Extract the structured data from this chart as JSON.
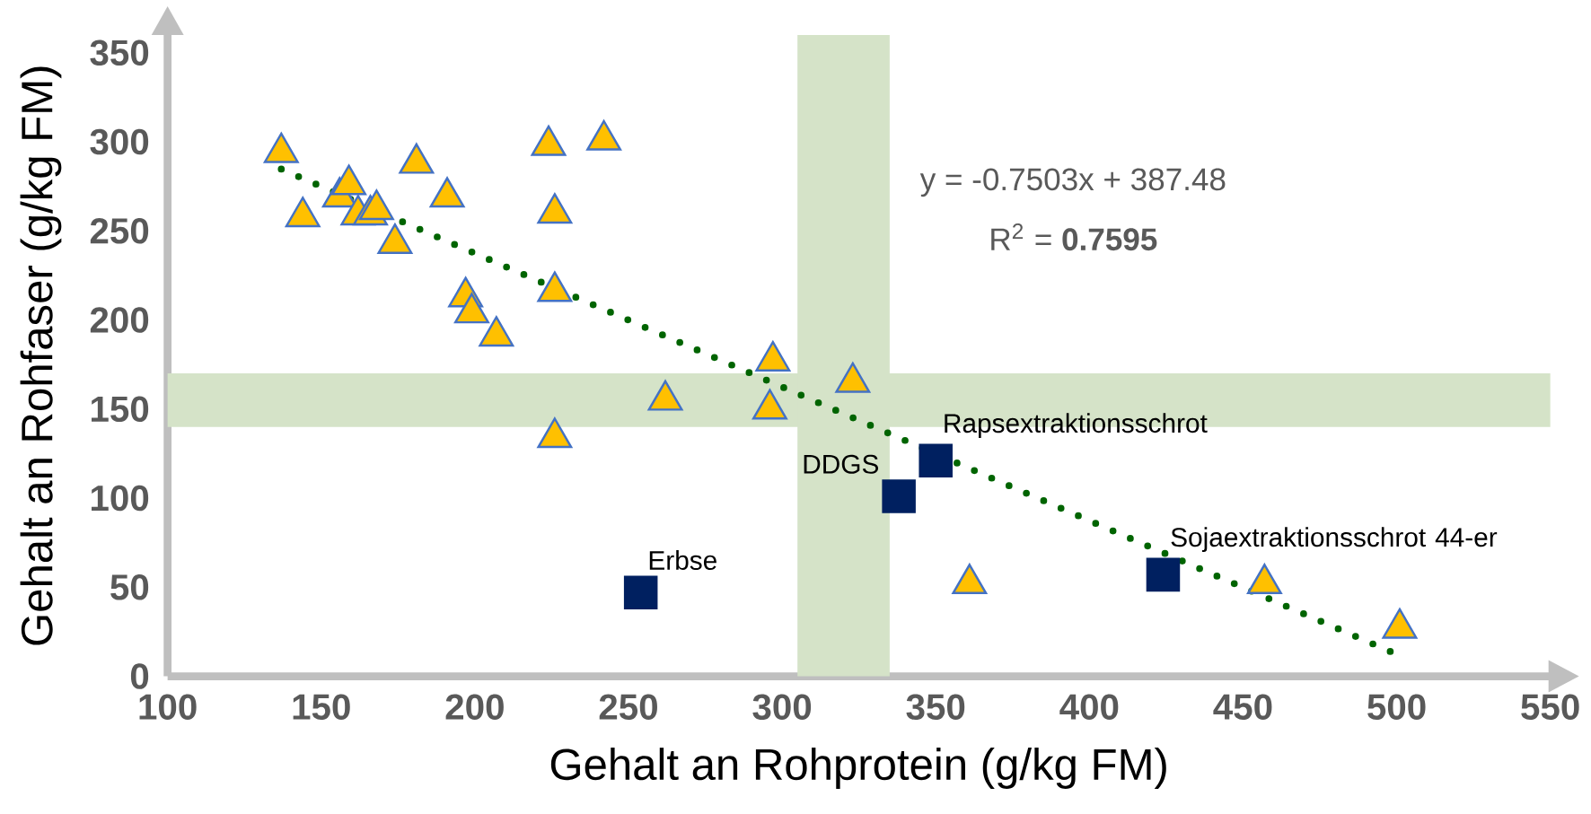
{
  "chart_data": {
    "type": "scatter",
    "xlabel": "Gehalt an Rohprotein (g/kg FM)",
    "ylabel": "Gehalt an Rohfaser (g/kg FM)",
    "xlim": [
      100,
      550
    ],
    "ylim": [
      0,
      360
    ],
    "xticks": [
      100,
      150,
      200,
      250,
      300,
      350,
      400,
      450,
      500,
      550
    ],
    "yticks": [
      0,
      50,
      100,
      150,
      200,
      250,
      300,
      350
    ],
    "series": [
      {
        "marker": "triangle",
        "color": "#ffc000",
        "x": [
          137,
          144,
          156,
          159,
          162,
          166,
          168,
          174,
          181,
          191,
          197,
          199,
          207,
          224,
          226,
          226,
          226,
          242,
          262,
          297,
          296,
          323,
          361,
          457,
          501
        ],
        "values": [
          294,
          258,
          269,
          276,
          259,
          259,
          262,
          243,
          288,
          269,
          213,
          204,
          191,
          298,
          260,
          216,
          134,
          301,
          155,
          177,
          150,
          165,
          52,
          52,
          27
        ]
      },
      {
        "marker": "square",
        "color": "#002060",
        "x": [
          254,
          338,
          350,
          424
        ],
        "values": [
          47,
          101,
          121,
          57
        ]
      },
      {
        "type": "line",
        "marker": "none",
        "line_style": "dotted",
        "color": "#006400",
        "x": [
          137,
          501
        ],
        "values": [
          284.7,
          11.6
        ]
      }
    ],
    "bands": [
      {
        "axis": "y",
        "from": 140,
        "to": 170,
        "color": "#d5e3c8"
      },
      {
        "axis": "x",
        "from": 305,
        "to": 335,
        "color": "#d5e3c8"
      }
    ],
    "annotations": [
      {
        "text": "Erbse",
        "x": 254,
        "y": 47
      },
      {
        "text": "DDGS",
        "x": 338,
        "y": 101
      },
      {
        "text": "Rapsextraktionsschrot",
        "x": 350,
        "y": 121
      },
      {
        "text": "Sojaextraktionsschrot 44-er",
        "x": 424,
        "y": 57
      },
      "y = -0.7503x + 387.48",
      "R$^{2}$ = **0.7595**"
    ]
  }
}
